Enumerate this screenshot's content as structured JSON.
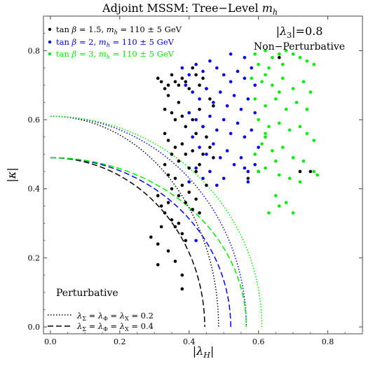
{
  "chart_data": {
    "type": "scatter",
    "title": "Adjoint MSSM: Tree−Level m_h",
    "xlabel": "|λ_H|",
    "ylabel": "|κ|",
    "xlim": [
      -0.02,
      0.9
    ],
    "ylim": [
      -0.02,
      0.9
    ],
    "xticks": [
      "0.0",
      "0.2",
      "0.4",
      "0.6",
      "0.8"
    ],
    "yticks": [
      "0.0",
      "0.2",
      "0.4",
      "0.6",
      "0.8"
    ],
    "legend_placement": "top-left",
    "annotations": {
      "lambda3": "|λ₃|=0.8",
      "nonpert": "Non−Perturbative",
      "pert": "Perturbative"
    },
    "series": [
      {
        "name": "tan β = 1.5, m_h = 110 ± 5 GeV",
        "color": "#000000",
        "points": [
          [
            0.31,
            0.72
          ],
          [
            0.32,
            0.71
          ],
          [
            0.33,
            0.69
          ],
          [
            0.33,
            0.63
          ],
          [
            0.34,
            0.7
          ],
          [
            0.35,
            0.73
          ],
          [
            0.36,
            0.71
          ],
          [
            0.37,
            0.7
          ],
          [
            0.38,
            0.72
          ],
          [
            0.39,
            0.71
          ],
          [
            0.4,
            0.69
          ],
          [
            0.41,
            0.75
          ],
          [
            0.42,
            0.73
          ],
          [
            0.43,
            0.7
          ],
          [
            0.44,
            0.72
          ],
          [
            0.45,
            0.69
          ],
          [
            0.46,
            0.66
          ],
          [
            0.47,
            0.64
          ],
          [
            0.34,
            0.67
          ],
          [
            0.35,
            0.62
          ],
          [
            0.36,
            0.6
          ],
          [
            0.37,
            0.65
          ],
          [
            0.38,
            0.61
          ],
          [
            0.39,
            0.58
          ],
          [
            0.4,
            0.62
          ],
          [
            0.41,
            0.6
          ],
          [
            0.42,
            0.56
          ],
          [
            0.43,
            0.63
          ],
          [
            0.44,
            0.58
          ],
          [
            0.45,
            0.55
          ],
          [
            0.46,
            0.52
          ],
          [
            0.47,
            0.49
          ],
          [
            0.33,
            0.56
          ],
          [
            0.34,
            0.54
          ],
          [
            0.35,
            0.5
          ],
          [
            0.36,
            0.52
          ],
          [
            0.37,
            0.48
          ],
          [
            0.38,
            0.53
          ],
          [
            0.39,
            0.5
          ],
          [
            0.4,
            0.46
          ],
          [
            0.41,
            0.51
          ],
          [
            0.42,
            0.45
          ],
          [
            0.43,
            0.47
          ],
          [
            0.44,
            0.5
          ],
          [
            0.45,
            0.41
          ],
          [
            0.33,
            0.47
          ],
          [
            0.34,
            0.44
          ],
          [
            0.35,
            0.4
          ],
          [
            0.36,
            0.43
          ],
          [
            0.37,
            0.38
          ],
          [
            0.38,
            0.41
          ],
          [
            0.39,
            0.36
          ],
          [
            0.4,
            0.39
          ],
          [
            0.41,
            0.34
          ],
          [
            0.42,
            0.37
          ],
          [
            0.43,
            0.33
          ],
          [
            0.31,
            0.38
          ],
          [
            0.32,
            0.35
          ],
          [
            0.33,
            0.33
          ],
          [
            0.34,
            0.36
          ],
          [
            0.35,
            0.31
          ],
          [
            0.36,
            0.29
          ],
          [
            0.37,
            0.3
          ],
          [
            0.38,
            0.27
          ],
          [
            0.39,
            0.25
          ],
          [
            0.29,
            0.26
          ],
          [
            0.31,
            0.24
          ],
          [
            0.32,
            0.29
          ],
          [
            0.34,
            0.22
          ],
          [
            0.36,
            0.19
          ],
          [
            0.31,
            0.18
          ],
          [
            0.38,
            0.15
          ],
          [
            0.38,
            0.11
          ],
          [
            0.66,
            0.78
          ],
          [
            0.72,
            0.45
          ],
          [
            0.75,
            0.45
          ],
          [
            0.6,
            0.45
          ],
          [
            0.57,
            0.43
          ]
        ]
      },
      {
        "name": "tan β = 2, m_h = 110 ± 5 GeV",
        "color": "#0000ff",
        "points": [
          [
            0.38,
            0.75
          ],
          [
            0.4,
            0.73
          ],
          [
            0.42,
            0.76
          ],
          [
            0.44,
            0.74
          ],
          [
            0.46,
            0.77
          ],
          [
            0.48,
            0.75
          ],
          [
            0.5,
            0.73
          ],
          [
            0.52,
            0.71
          ],
          [
            0.54,
            0.74
          ],
          [
            0.56,
            0.72
          ],
          [
            0.58,
            0.75
          ],
          [
            0.59,
            0.7
          ],
          [
            0.56,
            0.78
          ],
          [
            0.52,
            0.79
          ],
          [
            0.39,
            0.7
          ],
          [
            0.41,
            0.68
          ],
          [
            0.43,
            0.66
          ],
          [
            0.45,
            0.69
          ],
          [
            0.47,
            0.65
          ],
          [
            0.49,
            0.68
          ],
          [
            0.51,
            0.64
          ],
          [
            0.53,
            0.67
          ],
          [
            0.55,
            0.63
          ],
          [
            0.57,
            0.66
          ],
          [
            0.59,
            0.62
          ],
          [
            0.4,
            0.62
          ],
          [
            0.42,
            0.6
          ],
          [
            0.44,
            0.58
          ],
          [
            0.46,
            0.61
          ],
          [
            0.48,
            0.57
          ],
          [
            0.5,
            0.6
          ],
          [
            0.52,
            0.56
          ],
          [
            0.54,
            0.59
          ],
          [
            0.56,
            0.55
          ],
          [
            0.58,
            0.57
          ],
          [
            0.6,
            0.52
          ],
          [
            0.41,
            0.55
          ],
          [
            0.43,
            0.52
          ],
          [
            0.45,
            0.5
          ],
          [
            0.47,
            0.53
          ],
          [
            0.49,
            0.49
          ],
          [
            0.51,
            0.51
          ],
          [
            0.53,
            0.47
          ],
          [
            0.55,
            0.49
          ],
          [
            0.57,
            0.45
          ],
          [
            0.59,
            0.47
          ],
          [
            0.42,
            0.46
          ],
          [
            0.44,
            0.43
          ],
          [
            0.46,
            0.45
          ],
          [
            0.48,
            0.41
          ],
          [
            0.5,
            0.43
          ],
          [
            0.4,
            0.42
          ],
          [
            0.56,
            0.46
          ],
          [
            0.57,
            0.42
          ],
          [
            0.42,
            0.25
          ]
        ]
      },
      {
        "name": "tan β = 3, m_h = 110 ± 5 GeV",
        "color": "#00ee00",
        "points": [
          [
            0.59,
            0.79
          ],
          [
            0.62,
            0.8
          ],
          [
            0.64,
            0.78
          ],
          [
            0.66,
            0.79
          ],
          [
            0.68,
            0.8
          ],
          [
            0.7,
            0.79
          ],
          [
            0.72,
            0.78
          ],
          [
            0.74,
            0.77
          ],
          [
            0.76,
            0.76
          ],
          [
            0.6,
            0.76
          ],
          [
            0.63,
            0.75
          ],
          [
            0.67,
            0.76
          ],
          [
            0.58,
            0.72
          ],
          [
            0.61,
            0.71
          ],
          [
            0.64,
            0.7
          ],
          [
            0.67,
            0.72
          ],
          [
            0.7,
            0.69
          ],
          [
            0.73,
            0.71
          ],
          [
            0.75,
            0.68
          ],
          [
            0.62,
            0.73
          ],
          [
            0.59,
            0.66
          ],
          [
            0.62,
            0.64
          ],
          [
            0.65,
            0.66
          ],
          [
            0.68,
            0.63
          ],
          [
            0.71,
            0.65
          ],
          [
            0.74,
            0.63
          ],
          [
            0.66,
            0.68
          ],
          [
            0.6,
            0.6
          ],
          [
            0.63,
            0.58
          ],
          [
            0.66,
            0.59
          ],
          [
            0.69,
            0.57
          ],
          [
            0.72,
            0.58
          ],
          [
            0.74,
            0.56
          ],
          [
            0.76,
            0.54
          ],
          [
            0.62,
            0.56
          ],
          [
            0.61,
            0.53
          ],
          [
            0.64,
            0.51
          ],
          [
            0.67,
            0.52
          ],
          [
            0.7,
            0.49
          ],
          [
            0.73,
            0.48
          ],
          [
            0.76,
            0.45
          ],
          [
            0.59,
            0.5
          ],
          [
            0.65,
            0.48
          ],
          [
            0.62,
            0.46
          ],
          [
            0.66,
            0.44
          ],
          [
            0.69,
            0.43
          ],
          [
            0.72,
            0.42
          ],
          [
            0.77,
            0.44
          ],
          [
            0.6,
            0.45
          ],
          [
            0.65,
            0.38
          ],
          [
            0.68,
            0.36
          ],
          [
            0.7,
            0.33
          ],
          [
            0.63,
            0.33
          ],
          [
            0.66,
            0.35
          ],
          [
            0.62,
            0.55
          ]
        ]
      }
    ],
    "curves": [
      {
        "name": "λ_Σ = λ_Φ = λ_X = 0.2",
        "style": "dotted",
        "shift_k": 0.12,
        "radius": 0.61
      },
      {
        "name": "λ_Σ = λ_Φ = λ_X = 0.4",
        "style": "dashed",
        "shift_k": 0.0,
        "radius": 0.49
      }
    ],
    "curve_groups": [
      {
        "color": "#000000",
        "width": 0.96
      },
      {
        "color": "#0000ff",
        "width": 1.07
      },
      {
        "color": "#00ee00",
        "width": 1.18
      }
    ]
  }
}
